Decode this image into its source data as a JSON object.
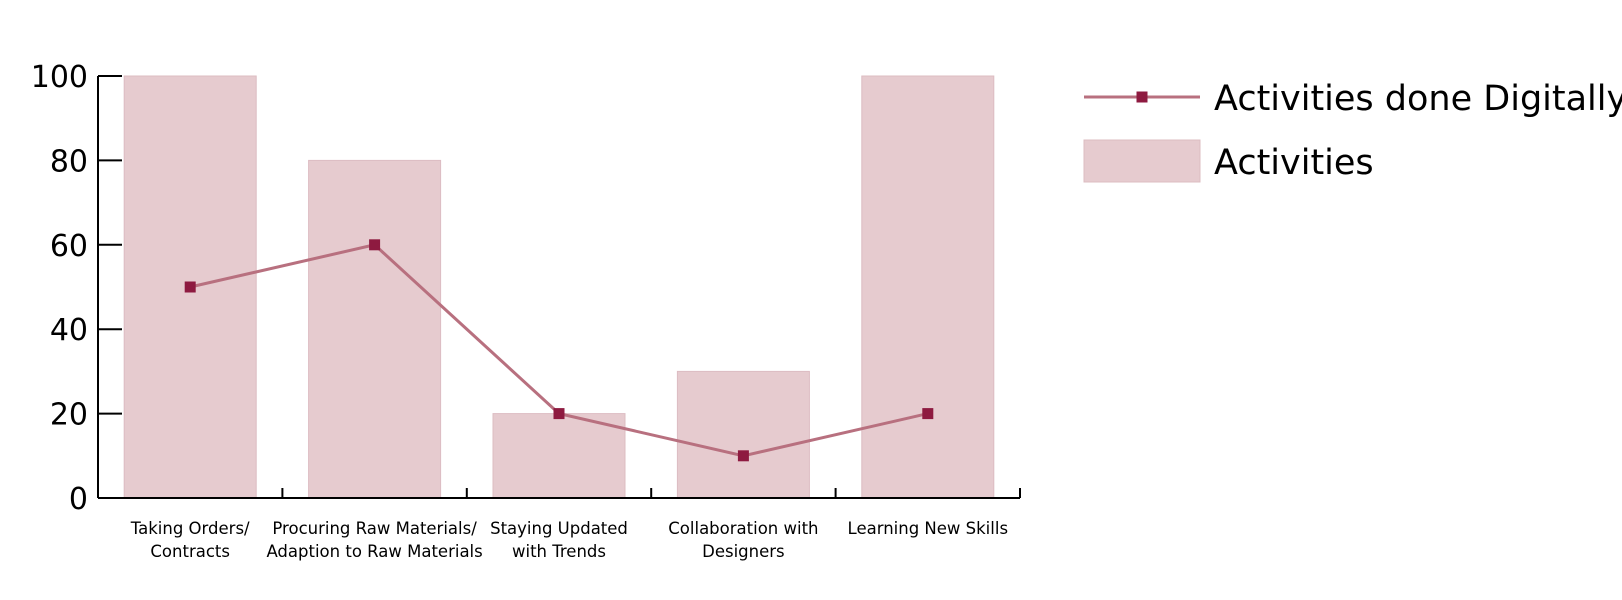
{
  "chart_data": {
    "type": "bar",
    "categories": [
      [
        "Taking Orders/",
        "Contracts"
      ],
      [
        "Procuring Raw Materials/",
        "Adaption to Raw Materials"
      ],
      [
        "Staying Updated",
        "with Trends"
      ],
      [
        "Collaboration with",
        "Designers"
      ],
      [
        "Learning New Skills"
      ]
    ],
    "series": [
      {
        "name": "Activities",
        "type": "bar",
        "values": [
          100,
          80,
          20,
          30,
          100
        ],
        "color": "#e6cbcf"
      },
      {
        "name": "Activities done Digitally",
        "type": "line",
        "values": [
          50,
          60,
          20,
          10,
          20
        ],
        "color": "#b8707f",
        "marker_color": "#8e1a40"
      }
    ],
    "ylim": [
      0,
      100
    ],
    "yticks": [
      0,
      20,
      40,
      60,
      80,
      100
    ],
    "grid": false,
    "legend_position": "top-right",
    "axis_color": "#000000"
  }
}
